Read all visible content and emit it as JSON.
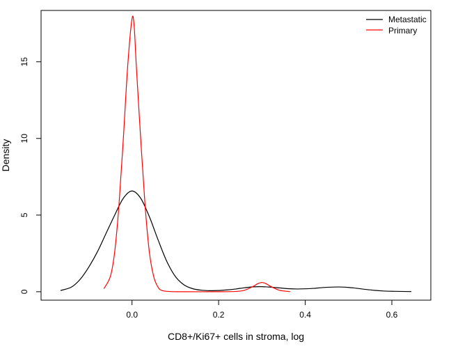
{
  "chart_data": {
    "type": "line",
    "title": "",
    "xlabel": "CD8+/Ki67+ cells in stroma, log",
    "ylabel": "Density",
    "xlim": [
      -0.21,
      0.69
    ],
    "ylim": [
      -0.55,
      18.35
    ],
    "x_ticks": [
      0.0,
      0.2,
      0.4,
      0.6
    ],
    "x_tick_labels": [
      "0.0",
      "0.2",
      "0.4",
      "0.6"
    ],
    "y_ticks": [
      0,
      5,
      10,
      15
    ],
    "y_tick_labels": [
      "0",
      "5",
      "10",
      "15"
    ],
    "grid": false,
    "legend_position": "top-right",
    "series": [
      {
        "name": "Metastatic",
        "color": "#000000",
        "points": [
          [
            -0.165,
            0.08
          ],
          [
            -0.14,
            0.3
          ],
          [
            -0.12,
            0.8
          ],
          [
            -0.1,
            1.6
          ],
          [
            -0.08,
            2.6
          ],
          [
            -0.06,
            3.8
          ],
          [
            -0.04,
            5.0
          ],
          [
            -0.02,
            6.1
          ],
          [
            0.0,
            6.57
          ],
          [
            0.02,
            6.1
          ],
          [
            0.04,
            4.9
          ],
          [
            0.06,
            3.4
          ],
          [
            0.08,
            2.0
          ],
          [
            0.1,
            1.0
          ],
          [
            0.12,
            0.45
          ],
          [
            0.14,
            0.2
          ],
          [
            0.16,
            0.1
          ],
          [
            0.18,
            0.07
          ],
          [
            0.2,
            0.08
          ],
          [
            0.22,
            0.12
          ],
          [
            0.24,
            0.18
          ],
          [
            0.26,
            0.26
          ],
          [
            0.28,
            0.32
          ],
          [
            0.3,
            0.33
          ],
          [
            0.32,
            0.3
          ],
          [
            0.34,
            0.25
          ],
          [
            0.36,
            0.2
          ],
          [
            0.38,
            0.18
          ],
          [
            0.4,
            0.19
          ],
          [
            0.42,
            0.22
          ],
          [
            0.44,
            0.27
          ],
          [
            0.46,
            0.3
          ],
          [
            0.48,
            0.31
          ],
          [
            0.5,
            0.28
          ],
          [
            0.52,
            0.22
          ],
          [
            0.54,
            0.15
          ],
          [
            0.56,
            0.09
          ],
          [
            0.58,
            0.05
          ],
          [
            0.6,
            0.03
          ],
          [
            0.62,
            0.02
          ],
          [
            0.645,
            0.01
          ]
        ]
      },
      {
        "name": "Primary",
        "color": "#ff0000",
        "points": [
          [
            -0.065,
            0.2
          ],
          [
            -0.05,
            1.0
          ],
          [
            -0.04,
            2.6
          ],
          [
            -0.03,
            5.7
          ],
          [
            -0.02,
            10.0
          ],
          [
            -0.01,
            14.7
          ],
          [
            0.0,
            17.8
          ],
          [
            0.005,
            17.3
          ],
          [
            0.01,
            14.7
          ],
          [
            0.02,
            10.0
          ],
          [
            0.03,
            5.7
          ],
          [
            0.04,
            2.6
          ],
          [
            0.05,
            1.0
          ],
          [
            0.06,
            0.3
          ],
          [
            0.07,
            0.07
          ],
          [
            0.09,
            0.01
          ],
          [
            0.12,
            0.0
          ],
          [
            0.2,
            0.0
          ],
          [
            0.24,
            0.02
          ],
          [
            0.26,
            0.1
          ],
          [
            0.28,
            0.35
          ],
          [
            0.29,
            0.52
          ],
          [
            0.3,
            0.6
          ],
          [
            0.31,
            0.52
          ],
          [
            0.32,
            0.35
          ],
          [
            0.34,
            0.1
          ],
          [
            0.36,
            0.02
          ],
          [
            0.365,
            0.01
          ]
        ]
      }
    ]
  }
}
